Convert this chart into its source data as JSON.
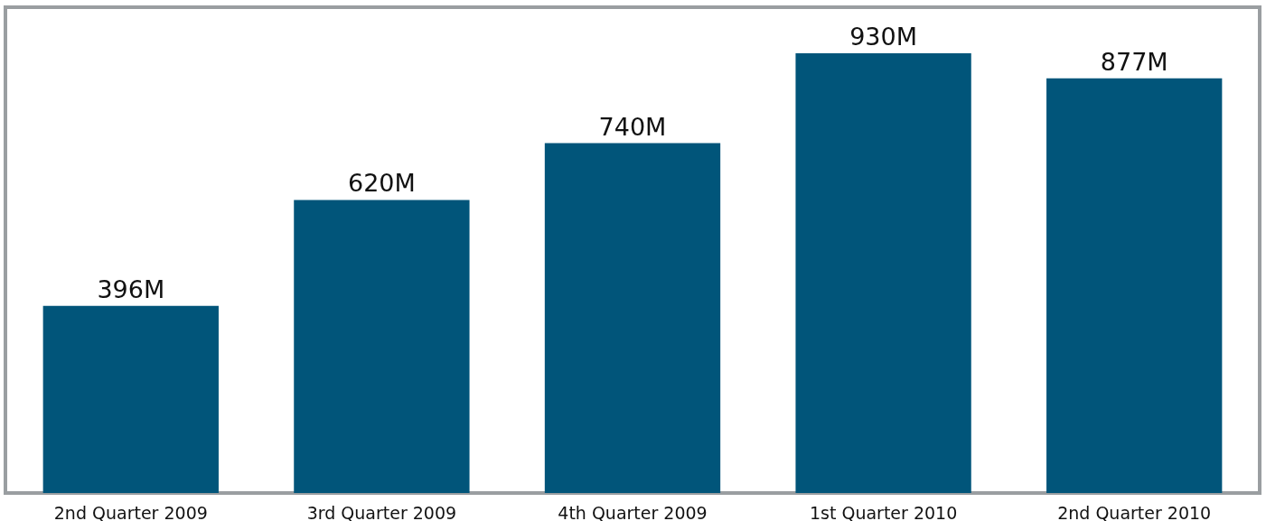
{
  "chart_data": {
    "type": "bar",
    "categories": [
      "2nd Quarter 2009",
      "3rd Quarter 2009",
      "4th Quarter 2009",
      "1st Quarter 2010",
      "2nd Quarter 2010"
    ],
    "values": [
      396,
      620,
      740,
      930,
      877
    ],
    "value_labels": [
      "396M",
      "620M",
      "740M",
      "930M",
      "877M"
    ],
    "color": "#01557a"
  }
}
